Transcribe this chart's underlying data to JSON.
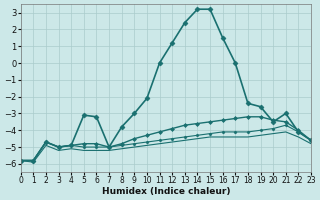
{
  "xlabel": "Humidex (Indice chaleur)",
  "background_color": "#cce8e8",
  "grid_color": "#aacccc",
  "line_color": "#1a7070",
  "xlim": [
    0,
    23
  ],
  "ylim": [
    -6.5,
    3.5
  ],
  "yticks": [
    3,
    2,
    1,
    0,
    -1,
    -2,
    -3,
    -4,
    -5,
    -6
  ],
  "xticks": [
    0,
    1,
    2,
    3,
    4,
    5,
    6,
    7,
    8,
    9,
    10,
    11,
    12,
    13,
    14,
    15,
    16,
    17,
    18,
    19,
    20,
    21,
    22,
    23
  ],
  "series": [
    {
      "x": [
        0,
        1,
        2,
        3,
        4,
        5,
        6,
        7,
        8,
        9,
        10,
        11,
        12,
        13,
        14,
        15,
        16,
        17,
        18,
        19,
        20,
        21,
        22,
        23
      ],
      "y": [
        -5.8,
        -5.8,
        -4.7,
        -5.0,
        -4.9,
        -3.1,
        -3.2,
        -5.0,
        -3.8,
        -3.0,
        -2.1,
        0.0,
        1.2,
        2.4,
        3.2,
        3.2,
        1.5,
        0.0,
        -2.4,
        -2.6,
        -3.5,
        -3.0,
        -4.1,
        -4.6
      ],
      "marker": "D",
      "markersize": 2.5,
      "linewidth": 1.2
    },
    {
      "x": [
        0,
        1,
        2,
        3,
        4,
        5,
        6,
        7,
        8,
        9,
        10,
        11,
        12,
        13,
        14,
        15,
        16,
        17,
        18,
        19,
        20,
        21,
        22,
        23
      ],
      "y": [
        -5.8,
        -5.8,
        -4.7,
        -5.0,
        -4.9,
        -4.8,
        -4.8,
        -5.0,
        -4.8,
        -4.5,
        -4.3,
        -4.1,
        -3.9,
        -3.7,
        -3.6,
        -3.5,
        -3.4,
        -3.3,
        -3.2,
        -3.2,
        -3.4,
        -3.5,
        -4.0,
        -4.6
      ],
      "marker": "D",
      "markersize": 2.0,
      "linewidth": 1.0
    },
    {
      "x": [
        0,
        1,
        2,
        3,
        4,
        5,
        6,
        7,
        8,
        9,
        10,
        11,
        12,
        13,
        14,
        15,
        16,
        17,
        18,
        19,
        20,
        21,
        22,
        23
      ],
      "y": [
        -5.8,
        -5.8,
        -4.7,
        -5.0,
        -4.9,
        -5.0,
        -5.0,
        -5.0,
        -4.9,
        -4.8,
        -4.7,
        -4.6,
        -4.5,
        -4.4,
        -4.3,
        -4.2,
        -4.1,
        -4.1,
        -4.1,
        -4.0,
        -3.9,
        -3.7,
        -4.1,
        -4.6
      ],
      "marker": "D",
      "markersize": 1.5,
      "linewidth": 0.8
    },
    {
      "x": [
        0,
        1,
        2,
        3,
        4,
        5,
        6,
        7,
        8,
        9,
        10,
        11,
        12,
        13,
        14,
        15,
        16,
        17,
        18,
        19,
        20,
        21,
        22,
        23
      ],
      "y": [
        -5.8,
        -5.9,
        -4.9,
        -5.2,
        -5.1,
        -5.2,
        -5.2,
        -5.2,
        -5.1,
        -5.0,
        -4.9,
        -4.8,
        -4.7,
        -4.6,
        -4.5,
        -4.4,
        -4.4,
        -4.4,
        -4.4,
        -4.3,
        -4.2,
        -4.1,
        -4.4,
        -4.8
      ],
      "marker": null,
      "markersize": 0,
      "linewidth": 0.8
    }
  ]
}
